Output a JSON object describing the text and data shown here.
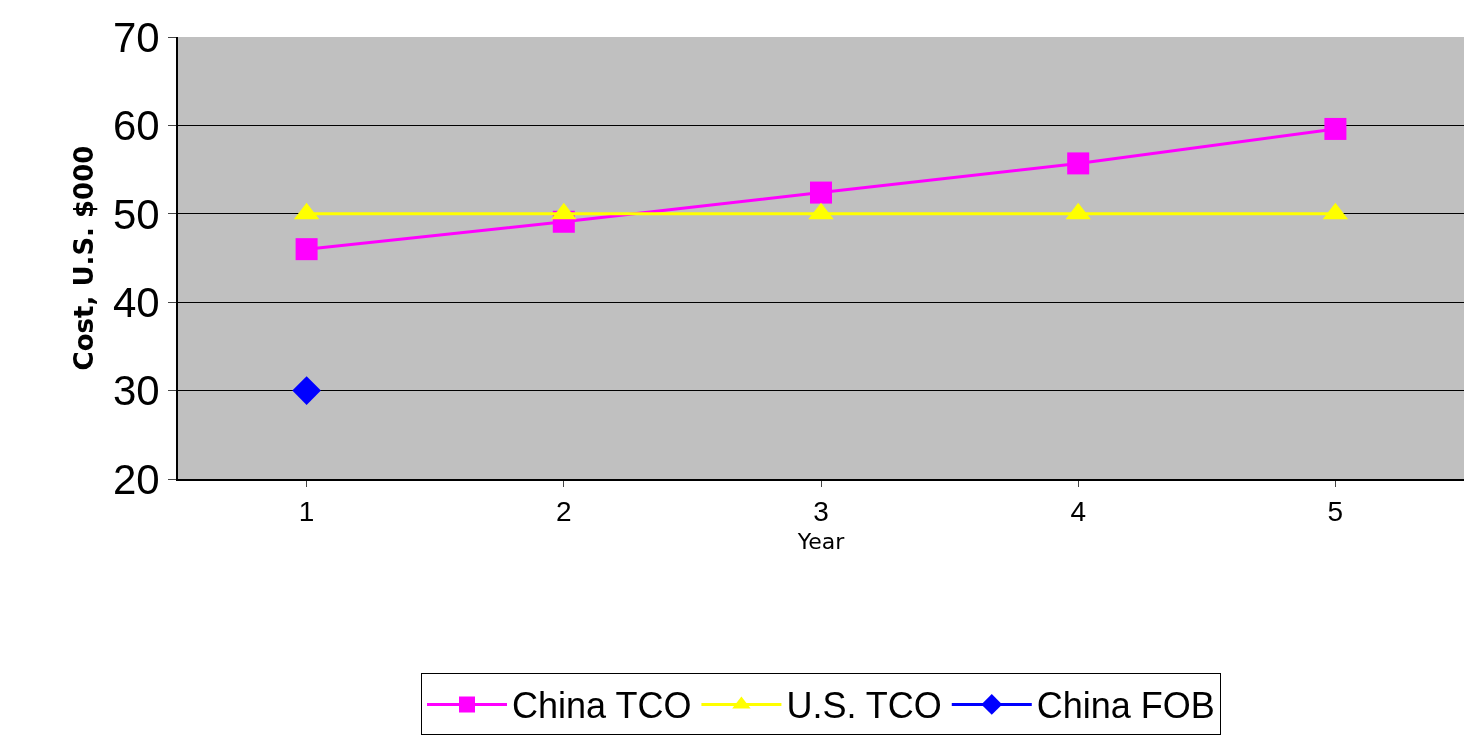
{
  "chart_data": {
    "type": "line",
    "xlabel": "Year",
    "ylabel": "Cost, U.S. $000",
    "categories": [
      "1",
      "2",
      "3",
      "4",
      "5"
    ],
    "series": [
      {
        "name": "China TCO",
        "color": "#ff00ff",
        "marker": "square",
        "values": [
          46.0,
          49.1,
          52.4,
          55.7,
          59.6
        ]
      },
      {
        "name": "U.S. TCO",
        "color": "#ffff00",
        "marker": "triangle",
        "values": [
          50,
          50,
          50,
          50,
          50
        ]
      },
      {
        "name": "China FOB",
        "color": "#0000ff",
        "marker": "diamond",
        "values": [
          30,
          null,
          null,
          null,
          null
        ]
      }
    ],
    "ylim": [
      20,
      70
    ],
    "yticks": [
      20,
      30,
      40,
      50,
      60,
      70
    ],
    "grid": "y",
    "legend": "bottom",
    "line_style": "solid"
  }
}
